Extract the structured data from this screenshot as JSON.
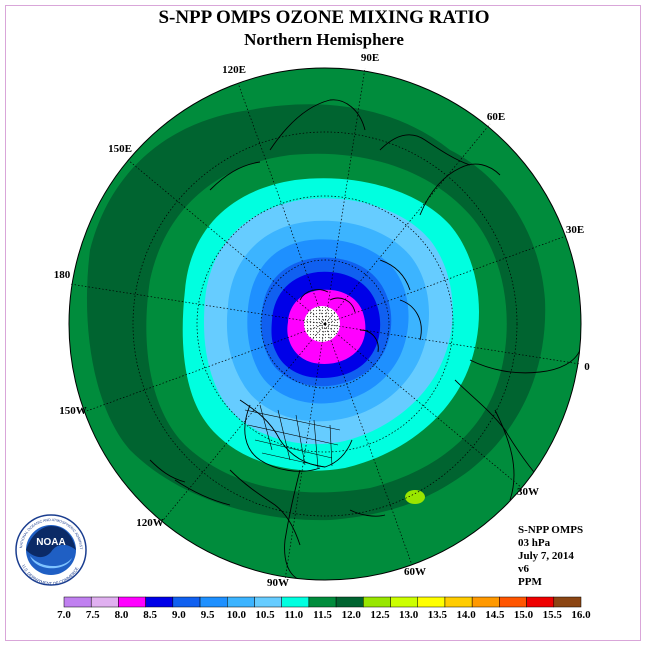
{
  "title": "S-NPP OMPS OZONE MIXING RATIO",
  "subtitle": "Northern Hemisphere",
  "longitude_labels": [
    "90E",
    "60E",
    "30E",
    "0",
    "30W",
    "60W",
    "90W",
    "120W",
    "150W",
    "180",
    "150E",
    "120E"
  ],
  "info": {
    "instrument": "S-NPP OMPS",
    "level": "03 hPa",
    "date": "July 7, 2014",
    "version": "v6",
    "units": "PPM"
  },
  "logo_text": [
    "NOAA",
    "NATIONAL OCEANIC AND ATMOSPHERIC ADMINISTRATION",
    "U.S. DEPARTMENT OF COMMERCE"
  ],
  "colorbar": {
    "labels": [
      "7.0",
      "7.5",
      "8.0",
      "8.5",
      "9.0",
      "9.5",
      "10.0",
      "10.5",
      "11.0",
      "11.5",
      "12.0",
      "12.5",
      "13.0",
      "13.5",
      "14.0",
      "14.5",
      "15.0",
      "15.5",
      "16.0"
    ],
    "colors": [
      "#c080f0",
      "#e0b0f0",
      "#ff00ff",
      "#0000e8",
      "#1060f0",
      "#1e90ff",
      "#3cb4ff",
      "#66ccff",
      "#00ffe0",
      "#008c3c",
      "#006430",
      "#99e600",
      "#ccff00",
      "#ffff00",
      "#ffcc00",
      "#ff9900",
      "#ff5500",
      "#ee0000",
      "#8b4513"
    ]
  },
  "chart_data": {
    "type": "polar_contour_map",
    "projection": "north polar stereographic",
    "variable": "ozone mixing ratio",
    "units": "PPM",
    "level_hPa": 3,
    "date": "July 7, 2014",
    "levels": [
      7.0,
      7.5,
      8.0,
      8.5,
      9.0,
      9.5,
      10.0,
      10.5,
      11.0,
      11.5,
      12.0,
      12.5,
      13.0,
      13.5,
      14.0,
      14.5,
      15.0,
      15.5,
      16.0
    ],
    "field_summary": [
      {
        "region": "pole",
        "min_band": [
          8.0,
          8.5
        ]
      },
      {
        "region": "mid-latitudes",
        "band": [
          11.0,
          12.0
        ]
      },
      {
        "region": "subtropics",
        "band": [
          11.5,
          12.0
        ]
      }
    ]
  }
}
